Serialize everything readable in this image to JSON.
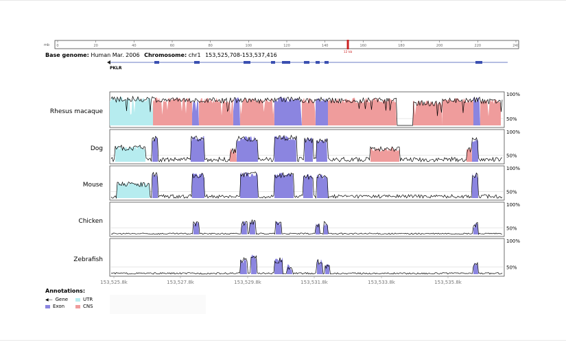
{
  "ruler": {
    "prefix": "mb",
    "ticks": [
      "0",
      "20",
      "40",
      "60",
      "80",
      "100",
      "120",
      "140",
      "160",
      "180",
      "200",
      "220",
      "240"
    ],
    "marker_label": "12 kb",
    "marker_position": 152
  },
  "header": {
    "base_genome_label": "Base genome:",
    "base_genome_value": "Human Mar. 2006",
    "chromosome_label": "Chromosome:",
    "chromosome_value": "chr1",
    "range": "153,525,708-153,537,416"
  },
  "gene": {
    "name": "PKLR"
  },
  "colors": {
    "exon": "#8b85e0",
    "utr": "#b6ecef",
    "cns": "#ef9c9c",
    "line": "#000000"
  },
  "chart_data": {
    "type": "area",
    "x_range": [
      153525000,
      153537000
    ],
    "x_ticks": [
      "153,525.8k",
      "153,527.8k",
      "153,529.8k",
      "153,531.8k",
      "153,533.8k",
      "153,535.8k"
    ],
    "y_labels": [
      "100%",
      "50%"
    ],
    "series": [
      {
        "name": "Rhesus macaque"
      },
      {
        "name": "Dog"
      },
      {
        "name": "Mouse"
      },
      {
        "name": "Chicken"
      },
      {
        "name": "Zebrafish"
      }
    ]
  },
  "annotations": {
    "title": "Annotations:",
    "gene": "Gene",
    "exon": "Exon",
    "utr": "UTR",
    "cns": "CNS"
  }
}
